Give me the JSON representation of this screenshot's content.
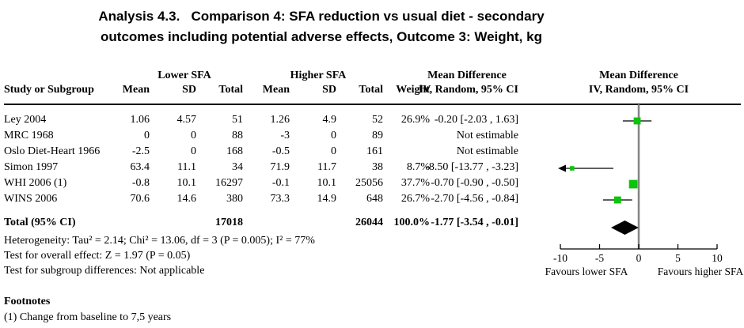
{
  "title": {
    "line1": "Analysis 4.3.   Comparison 4: SFA reduction vs usual diet - secondary",
    "line2": "outcomes including potential adverse effects, Outcome 3: Weight, kg"
  },
  "table": {
    "group_headers": {
      "lower": "Lower SFA",
      "higher": "Higher SFA",
      "md_left": "Mean Difference",
      "md_right": "Mean Difference"
    },
    "col_headers": {
      "study": "Study or Subgroup",
      "mean1": "Mean",
      "sd1": "SD",
      "total1": "Total",
      "mean2": "Mean",
      "sd2": "SD",
      "total2": "Total",
      "weight": "Weight",
      "ci_left": "IV, Random, 95% CI",
      "ci_right": "IV, Random, 95% CI"
    },
    "rows": [
      {
        "study": "Ley 2004",
        "mean1": "1.06",
        "sd1": "4.57",
        "total1": "51",
        "mean2": "1.26",
        "sd2": "4.9",
        "total2": "52",
        "weight": "26.9%",
        "ci": "-0.20 [-2.03 , 1.63]"
      },
      {
        "study": "MRC 1968",
        "mean1": "0",
        "sd1": "0",
        "total1": "88",
        "mean2": "-3",
        "sd2": "0",
        "total2": "89",
        "weight": "",
        "ci": "Not estimable"
      },
      {
        "study": "Oslo Diet-Heart 1966",
        "mean1": "-2.5",
        "sd1": "0",
        "total1": "168",
        "mean2": "-0.5",
        "sd2": "0",
        "total2": "161",
        "weight": "",
        "ci": "Not estimable"
      },
      {
        "study": "Simon 1997",
        "mean1": "63.4",
        "sd1": "11.1",
        "total1": "34",
        "mean2": "71.9",
        "sd2": "11.7",
        "total2": "38",
        "weight": "8.7%",
        "ci": "-8.50 [-13.77 , -3.23]"
      },
      {
        "study": "WHI 2006 (1)",
        "mean1": "-0.8",
        "sd1": "10.1",
        "total1": "16297",
        "mean2": "-0.1",
        "sd2": "10.1",
        "total2": "25056",
        "weight": "37.7%",
        "ci": "-0.70 [-0.90 , -0.50]"
      },
      {
        "study": "WINS 2006",
        "mean1": "70.6",
        "sd1": "14.6",
        "total1": "380",
        "mean2": "73.3",
        "sd2": "14.9",
        "total2": "648",
        "weight": "26.7%",
        "ci": "-2.70 [-4.56 , -0.84]"
      }
    ],
    "total_row": {
      "label": "Total (95% CI)",
      "total1": "17018",
      "total2": "26044",
      "weight": "100.0%",
      "ci": "-1.77 [-3.54 , -0.01]"
    },
    "stats": {
      "heterogeneity": "Heterogeneity: Tau² = 2.14; Chi² = 13.06, df = 3 (P = 0.005); I² = 77%",
      "overall": "Test for overall effect: Z = 1.97 (P = 0.05)",
      "subgroup": "Test for subgroup differences: Not applicable"
    }
  },
  "footnotes": {
    "heading": "Footnotes",
    "items": [
      "(1) Change from baseline to 7,5 years"
    ]
  },
  "chart_data": {
    "type": "forest",
    "title": "Comparison 4: SFA reduction vs usual diet, Outcome 3: Weight, kg",
    "effect_measure": "Mean Difference, IV, Random, 95% CI",
    "axis": {
      "min": -10,
      "max": 10,
      "ticks": [
        -10,
        -5,
        0,
        5,
        10
      ],
      "label_left": "Favours lower SFA",
      "label_right": "Favours higher SFA"
    },
    "studies": [
      {
        "name": "Ley 2004",
        "estimate": -0.2,
        "ci_lower": -2.03,
        "ci_upper": 1.63,
        "weight_pct": 26.9
      },
      {
        "name": "MRC 1968",
        "estimate": null,
        "ci_lower": null,
        "ci_upper": null,
        "weight_pct": null
      },
      {
        "name": "Oslo Diet-Heart 1966",
        "estimate": null,
        "ci_lower": null,
        "ci_upper": null,
        "weight_pct": null
      },
      {
        "name": "Simon 1997",
        "estimate": -8.5,
        "ci_lower": -13.77,
        "ci_upper": -3.23,
        "weight_pct": 8.7
      },
      {
        "name": "WHI 2006 (1)",
        "estimate": -0.7,
        "ci_lower": -0.9,
        "ci_upper": -0.5,
        "weight_pct": 37.7
      },
      {
        "name": "WINS 2006",
        "estimate": -2.7,
        "ci_lower": -4.56,
        "ci_upper": -0.84,
        "weight_pct": 26.7
      }
    ],
    "total": {
      "estimate": -1.77,
      "ci_lower": -3.54,
      "ci_upper": -0.01
    },
    "colors": {
      "marker": "#0bc40b",
      "diamond": "#000000",
      "zero_line": "#848484",
      "ci_line": "#000000"
    }
  }
}
